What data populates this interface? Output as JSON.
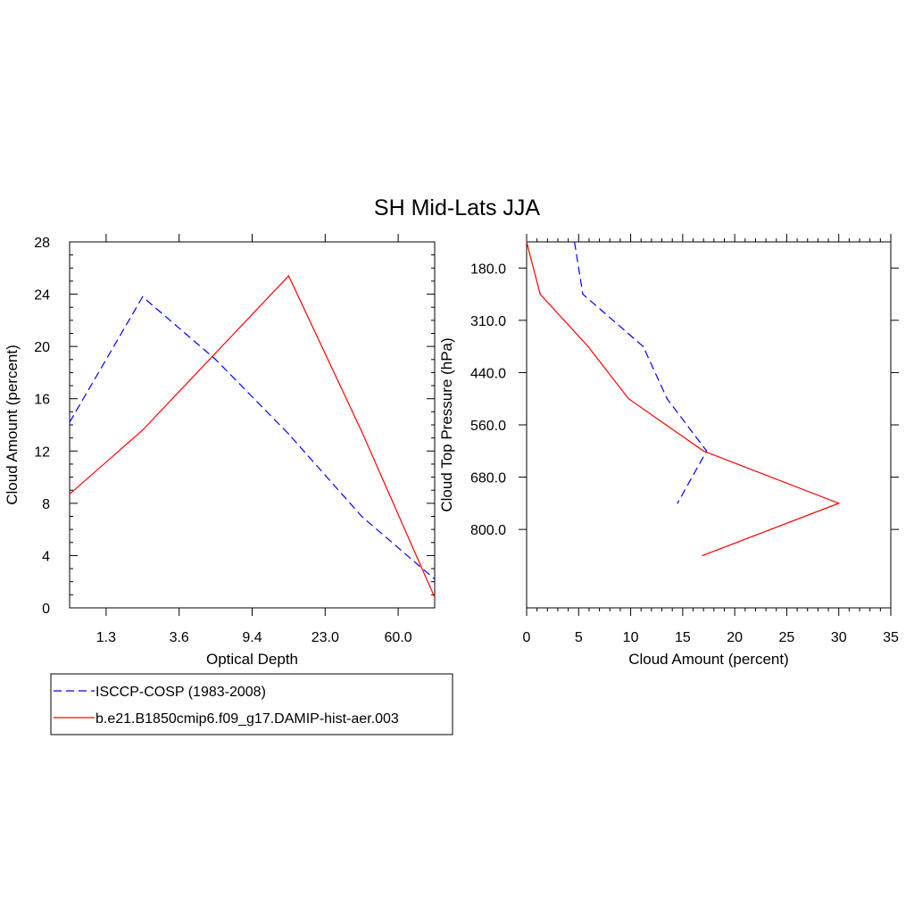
{
  "title": "SH Mid-Lats JJA",
  "legend": {
    "entries": [
      {
        "label": "ISCCP-COSP (1983-2008)",
        "color": "#0000ff",
        "dash": "dashed"
      },
      {
        "label": "b.e21.B1850cmip6.f09_g17.DAMIP-hist-aer.003",
        "color": "#ff0000",
        "dash": "solid"
      }
    ]
  },
  "chart_data": [
    {
      "type": "line",
      "xlabel": "Optical Depth",
      "ylabel": "Cloud Amount (percent)",
      "ylim": [
        0,
        28
      ],
      "xlim": [
        0,
        5
      ],
      "x_positions": [
        0,
        1,
        2,
        3,
        4,
        5
      ],
      "x_tick_positions": [
        0.5,
        1.5,
        2.5,
        3.5,
        4.5
      ],
      "x_tick_labels": [
        "1.3",
        "3.6",
        "9.4",
        "23.0",
        "60.0"
      ],
      "y_ticks": [
        0,
        4,
        8,
        12,
        16,
        20,
        24,
        28
      ],
      "series": [
        {
          "name": "ISCCP-COSP (1983-2008)",
          "color": "#0000ff",
          "dash": "dashed",
          "values": [
            14.2,
            23.8,
            19.0,
            13.3,
            7.0,
            2.2
          ]
        },
        {
          "name": "b.e21.B1850cmip6.f09_g17.DAMIP-hist-aer.003",
          "color": "#ff0000",
          "dash": "solid",
          "values": [
            8.7,
            13.6,
            19.5,
            25.4,
            13.5,
            0.8
          ]
        }
      ]
    },
    {
      "type": "line",
      "orientation": "horizontal-profile",
      "xlabel": "Cloud Amount (percent)",
      "ylabel": "Cloud Top Pressure (hPa)",
      "xlim": [
        0,
        35
      ],
      "x_ticks": [
        0,
        5,
        10,
        15,
        20,
        25,
        30,
        35
      ],
      "ylim": [
        0,
        7
      ],
      "y_levels": [
        0,
        1,
        2,
        3,
        4,
        5,
        6,
        7
      ],
      "y_tick_positions": [
        0.5,
        1.5,
        2.5,
        3.5,
        4.5,
        5.5
      ],
      "y_tick_labels": [
        "180.0",
        "310.0",
        "440.0",
        "560.0",
        "680.0",
        "800.0"
      ],
      "series": [
        {
          "name": "ISCCP-COSP (1983-2008)",
          "color": "#0000ff",
          "dash": "dashed",
          "values": [
            4.6,
            5.4,
            11.2,
            13.5,
            17.3,
            14.5
          ]
        },
        {
          "name": "b.e21.B1850cmip6.f09_g17.DAMIP-hist-aer.003",
          "color": "#ff0000",
          "dash": "solid",
          "values": [
            0,
            1.3,
            5.9,
            9.8,
            17.0,
            30.0,
            16.9
          ]
        }
      ]
    }
  ]
}
